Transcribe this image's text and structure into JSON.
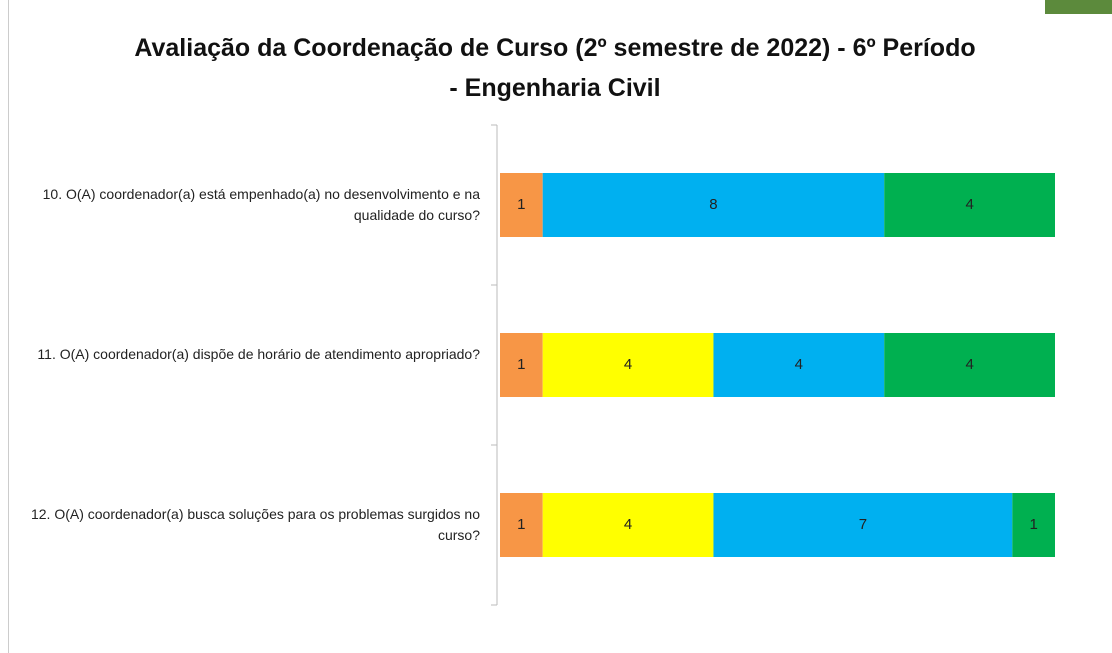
{
  "chart_data": {
    "type": "stacked-bar-horizontal",
    "title": "Avaliação da Coordenação de Curso (2º semestre de 2022) - 6º Período - Engenharia Civil",
    "categories": [
      "10. O(A) coordenador(a) está empenhado(a) no desenvolvimento e na qualidade do curso?",
      "11. O(A) coordenador(a) dispõe de horário de atendimento apropriado?",
      "12. O(A) coordenador(a) busca soluções para os problemas surgidos no curso?"
    ],
    "series": [
      {
        "color": "#f79646",
        "values": [
          1,
          1,
          1
        ]
      },
      {
        "color": "#ffff00",
        "values": [
          null,
          4,
          4
        ]
      },
      {
        "color": "#00b0f0",
        "values": [
          8,
          4,
          7
        ]
      },
      {
        "color": "#00b050",
        "values": [
          4,
          4,
          1
        ]
      }
    ],
    "xlim": [
      0,
      13
    ]
  }
}
